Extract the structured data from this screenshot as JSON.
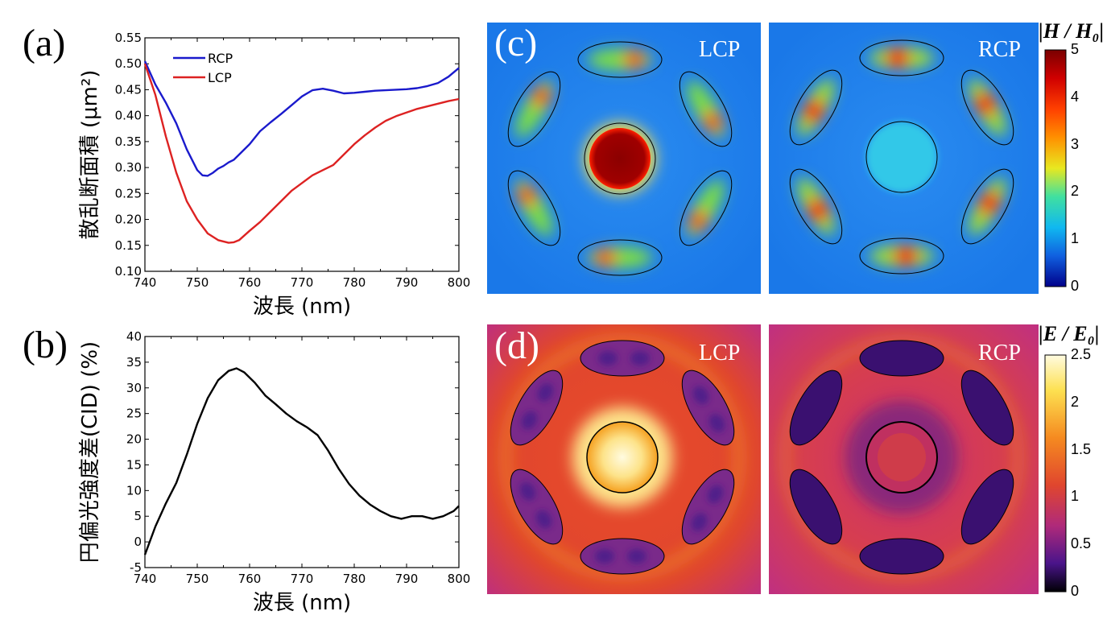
{
  "panel_labels": {
    "a": "(a)",
    "b": "(b)",
    "c": "(c)",
    "d": "(d)"
  },
  "chart_data": [
    {
      "id": "a",
      "type": "line",
      "xlabel": "波長 (nm)",
      "ylabel": "散乱断面積 (μm²)",
      "xlim": [
        740,
        800
      ],
      "ylim": [
        0.1,
        0.55
      ],
      "xticks": [
        740,
        750,
        760,
        770,
        780,
        790,
        800
      ],
      "yticks": [
        "0.10",
        "0.15",
        "0.20",
        "0.25",
        "0.30",
        "0.35",
        "0.40",
        "0.45",
        "0.50",
        "0.55"
      ],
      "legend": "top-left",
      "series": [
        {
          "name": "RCP",
          "color": "#1a1acc",
          "x": [
            740,
            742,
            744,
            746,
            748,
            750,
            751,
            752,
            753,
            754,
            755,
            756,
            757,
            758,
            760,
            762,
            764,
            766,
            768,
            770,
            772,
            774,
            776,
            778,
            780,
            782,
            784,
            786,
            788,
            790,
            792,
            794,
            796,
            798,
            800
          ],
          "y": [
            0.505,
            0.46,
            0.425,
            0.385,
            0.335,
            0.295,
            0.285,
            0.284,
            0.29,
            0.298,
            0.303,
            0.31,
            0.315,
            0.325,
            0.345,
            0.37,
            0.387,
            0.403,
            0.42,
            0.437,
            0.449,
            0.452,
            0.448,
            0.443,
            0.444,
            0.446,
            0.448,
            0.449,
            0.45,
            0.451,
            0.453,
            0.457,
            0.463,
            0.475,
            0.492
          ]
        },
        {
          "name": "LCP",
          "color": "#dd2222",
          "x": [
            740,
            742,
            744,
            746,
            748,
            750,
            752,
            754,
            756,
            757,
            758,
            760,
            762,
            764,
            766,
            768,
            770,
            772,
            774,
            776,
            778,
            780,
            782,
            784,
            786,
            788,
            790,
            792,
            794,
            796,
            798,
            800
          ],
          "y": [
            0.5,
            0.44,
            0.36,
            0.29,
            0.235,
            0.2,
            0.173,
            0.16,
            0.155,
            0.156,
            0.16,
            0.178,
            0.195,
            0.215,
            0.235,
            0.255,
            0.27,
            0.285,
            0.295,
            0.305,
            0.325,
            0.345,
            0.362,
            0.377,
            0.39,
            0.399,
            0.406,
            0.413,
            0.418,
            0.423,
            0.428,
            0.432
          ]
        }
      ]
    },
    {
      "id": "b",
      "type": "line",
      "xlabel": "波長 (nm)",
      "ylabel": "円偏光強度差(CID) (%)",
      "xlim": [
        740,
        800
      ],
      "ylim": [
        -5,
        40
      ],
      "xticks": [
        740,
        750,
        760,
        770,
        780,
        790,
        800
      ],
      "yticks": [
        -5,
        0,
        5,
        10,
        15,
        20,
        25,
        30,
        35,
        40
      ],
      "series": [
        {
          "name": "",
          "color": "#000000",
          "x": [
            740,
            742,
            744,
            746,
            748,
            750,
            752,
            754,
            756,
            757.5,
            759,
            761,
            763,
            765,
            767,
            769,
            771,
            773,
            775,
            777,
            779,
            781,
            783,
            785,
            787,
            789,
            791,
            793,
            795,
            797,
            799,
            800
          ],
          "y": [
            -2.5,
            3,
            7.5,
            11.5,
            17,
            23,
            28,
            31.5,
            33.3,
            33.8,
            33,
            31,
            28.5,
            26.8,
            25,
            23.5,
            22.3,
            20.8,
            17.8,
            14.3,
            11.3,
            9,
            7.3,
            6,
            5,
            4.5,
            5,
            5,
            4.5,
            5,
            6,
            7
          ]
        }
      ]
    }
  ],
  "field_maps": {
    "c": {
      "left_label": "LCP",
      "right_label": "RCP",
      "colorbar_title": "|H / H₀|",
      "colorbar_ticks": [
        "5",
        "4",
        "3",
        "2",
        "1",
        "0"
      ]
    },
    "d": {
      "left_label": "LCP",
      "right_label": "RCP",
      "colorbar_title": "|E / E₀|",
      "colorbar_ticks": [
        "2.5",
        "2",
        "1.5",
        "1",
        "0.5",
        "0"
      ]
    }
  }
}
